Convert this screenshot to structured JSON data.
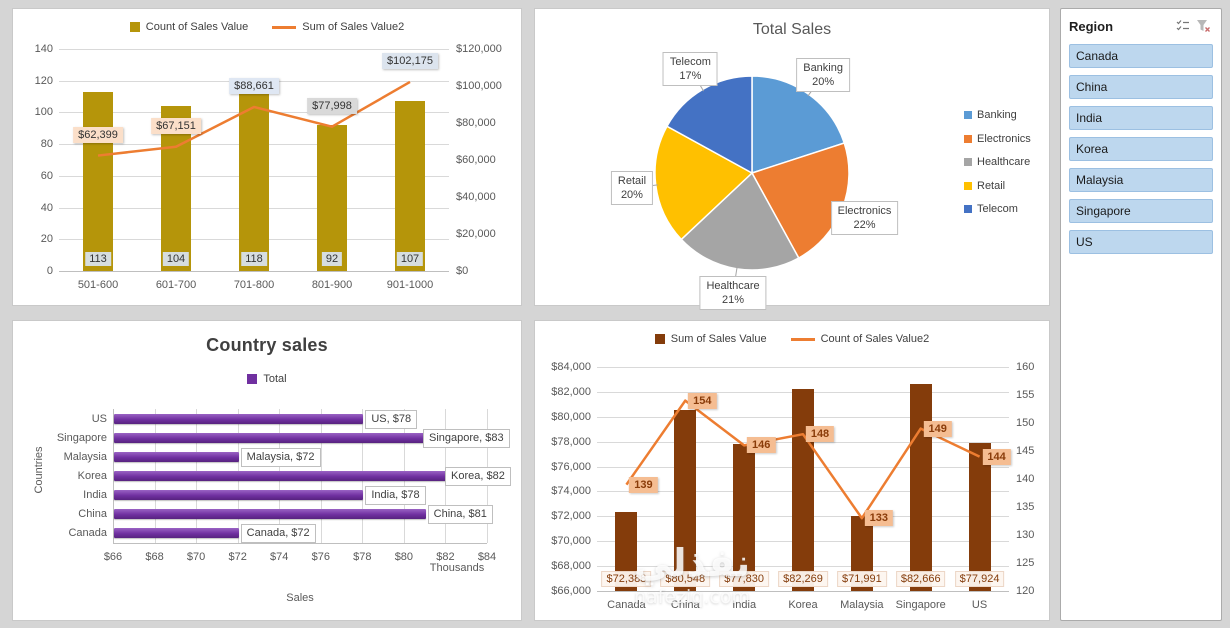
{
  "watermark": {
    "line1": "نفذلي",
    "line2": "nafeziq.com"
  },
  "slicer": {
    "title": "Region",
    "items": [
      "Canada",
      "China",
      "India",
      "Korea",
      "Malaysia",
      "Singapore",
      "US"
    ],
    "item_bg": "#bdd7ee",
    "item_border": "#9cc0e2"
  },
  "chart_data": [
    {
      "id": "sales-range-combo",
      "type": "bar",
      "categories": [
        "501-600",
        "601-700",
        "701-800",
        "801-900",
        "901-1000"
      ],
      "series": [
        {
          "name": "Count of Sales Value",
          "kind": "bar",
          "color": "#b5950a",
          "values": [
            113,
            104,
            118,
            92,
            107
          ]
        },
        {
          "name": "Sum of Sales Value2",
          "kind": "line",
          "color": "#ed7d31",
          "values": [
            62399,
            67151,
            88661,
            77998,
            102175
          ],
          "labels": [
            "$62,399",
            "$67,151",
            "$88,661",
            "$77,998",
            "$102,175"
          ],
          "label_bg": [
            "#fbdfc9",
            "#fbdfc9",
            "#dfe7f3",
            "#d9d9d9",
            "#dce4ee"
          ]
        }
      ],
      "bar_labels": [
        "113",
        "104",
        "118",
        "92",
        "107"
      ],
      "left_axis": {
        "min": 0,
        "max": 140,
        "ticks": [
          "0",
          "20",
          "40",
          "60",
          "80",
          "100",
          "120",
          "140"
        ]
      },
      "right_axis": {
        "min": 0,
        "max": 120000,
        "ticks": [
          "$0",
          "$20,000",
          "$40,000",
          "$60,000",
          "$80,000",
          "$100,000",
          "$120,000"
        ]
      },
      "grid": true,
      "legend_position": "top"
    },
    {
      "id": "total-sales-pie",
      "type": "pie",
      "title": "Total Sales",
      "slices": [
        {
          "name": "Banking",
          "pct": 20,
          "color": "#5b9bd5"
        },
        {
          "name": "Electronics",
          "pct": 22,
          "color": "#ed7d31"
        },
        {
          "name": "Healthcare",
          "pct": 21,
          "color": "#a5a5a5"
        },
        {
          "name": "Retail",
          "pct": 20,
          "color": "#ffc000"
        },
        {
          "name": "Telecom",
          "pct": 17,
          "color": "#4472c4"
        }
      ],
      "legend_position": "right"
    },
    {
      "id": "country-sales-hbar",
      "type": "bar",
      "title": "Country sales",
      "legend": "Total",
      "color": "#7030a0",
      "categories_top_to_bottom": [
        "US",
        "Singapore",
        "Malaysia",
        "Korea",
        "India",
        "China",
        "Canada"
      ],
      "values": [
        78,
        83,
        72,
        82,
        78,
        81,
        72
      ],
      "labels": [
        "US, $78",
        "Singapore, $83",
        "Malaysia, $72",
        "Korea, $82",
        "India, $78",
        "China, $81",
        "Canada, $72"
      ],
      "x_axis": {
        "min": 66,
        "max": 84,
        "ticks": [
          "$66",
          "$68",
          "$70",
          "$72",
          "$74",
          "$76",
          "$78",
          "$80",
          "$82",
          "$84"
        ]
      },
      "x_units": "Thousands",
      "xlabel": "Sales",
      "ylabel": "Countries",
      "grid": true
    },
    {
      "id": "country-combo",
      "type": "bar",
      "categories": [
        "Canada",
        "China",
        "India",
        "Korea",
        "Malaysia",
        "Singapore",
        "US"
      ],
      "series": [
        {
          "name": "Sum of Sales Value",
          "kind": "bar",
          "color": "#843c0b",
          "values": [
            72388,
            80548,
            77830,
            82269,
            71991,
            82666,
            77924
          ]
        },
        {
          "name": "Count of Sales Value2",
          "kind": "line",
          "color": "#ed7d31",
          "values": [
            139,
            154,
            146,
            148,
            133,
            149,
            144
          ],
          "labels": [
            "139",
            "154",
            "146",
            "148",
            "133",
            "149",
            "144"
          ]
        }
      ],
      "bar_labels": [
        "$72,388",
        "$80,548",
        "$77,830",
        "$82,269",
        "$71,991",
        "$82,666",
        "$77,924"
      ],
      "left_axis": {
        "min": 66000,
        "max": 84000,
        "ticks": [
          "$66,000",
          "$68,000",
          "$70,000",
          "$72,000",
          "$74,000",
          "$76,000",
          "$78,000",
          "$80,000",
          "$82,000",
          "$84,000"
        ]
      },
      "right_axis": {
        "min": 120,
        "max": 160,
        "ticks": [
          "120",
          "125",
          "130",
          "135",
          "140",
          "145",
          "150",
          "155",
          "160"
        ]
      },
      "grid": true,
      "legend_position": "top"
    }
  ]
}
